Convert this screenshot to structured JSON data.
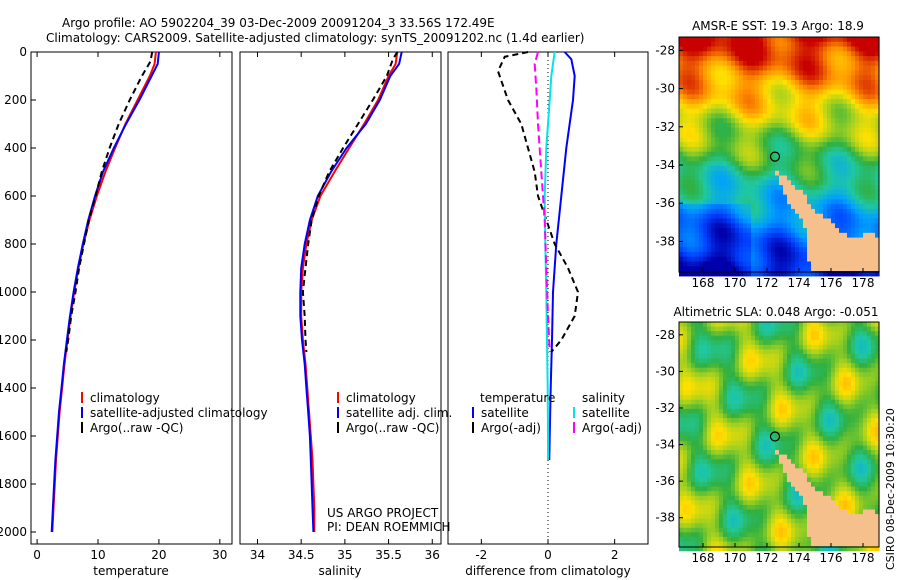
{
  "title": {
    "line1": "Argo profile: AO 5902204_39 03-Dec-2009 20091204_3 33.56S 172.49E",
    "line2": "Climatology: CARS2009. Satellite-adjusted climatology: synTS_20091202.nc (1.4d earlier)"
  },
  "side_label": "CSIRO 08-Dec-2009 10:30:20",
  "project_note": {
    "line1": "US ARGO PROJECT",
    "line2": "PI: DEAN ROEMMICH"
  },
  "colors": {
    "climatology": "#ff0000",
    "satellite": "#0000ff",
    "argo": "#000000",
    "salinity_satellite": "#00e5e5",
    "salinity_argo": "#ff00ff",
    "land": "#f5c08c"
  },
  "chart_data": [
    {
      "id": "temperature",
      "type": "line",
      "xlabel": "temperature",
      "ylabel": "",
      "xlim": [
        -1,
        32
      ],
      "ylim": [
        2050,
        0
      ],
      "xticks": [
        0,
        10,
        20,
        30
      ],
      "yticks": [
        0,
        200,
        400,
        600,
        800,
        1000,
        1200,
        1400,
        1600,
        1800,
        2000
      ],
      "legend": {
        "placement": "lower-right",
        "entries": [
          "climatology",
          "satellite-adjusted climatology",
          "Argo(..raw -QC)"
        ]
      },
      "series": [
        {
          "name": "climatology",
          "color": "#ff0000",
          "dash": "",
          "points": [
            [
              19.5,
              0
            ],
            [
              19.3,
              50
            ],
            [
              18.5,
              100
            ],
            [
              16.5,
              200
            ],
            [
              14.5,
              300
            ],
            [
              12.8,
              400
            ],
            [
              11.2,
              500
            ],
            [
              9.8,
              600
            ],
            [
              8.6,
              700
            ],
            [
              7.6,
              800
            ],
            [
              6.8,
              900
            ],
            [
              6.1,
              1000
            ],
            [
              5.5,
              1100
            ],
            [
              5.0,
              1200
            ],
            [
              4.5,
              1300
            ],
            [
              4.1,
              1400
            ],
            [
              3.7,
              1500
            ],
            [
              3.4,
              1600
            ],
            [
              3.1,
              1700
            ],
            [
              2.9,
              1800
            ],
            [
              2.7,
              1900
            ],
            [
              2.5,
              2000
            ]
          ]
        },
        {
          "name": "satellite-adjusted climatology",
          "color": "#0000ff",
          "dash": "",
          "points": [
            [
              20.0,
              0
            ],
            [
              19.8,
              50
            ],
            [
              18.8,
              100
            ],
            [
              16.8,
              200
            ],
            [
              14.6,
              300
            ],
            [
              12.6,
              400
            ],
            [
              10.8,
              500
            ],
            [
              9.5,
              600
            ],
            [
              8.4,
              700
            ],
            [
              7.5,
              800
            ],
            [
              6.7,
              900
            ],
            [
              6.0,
              1000
            ],
            [
              5.4,
              1100
            ],
            [
              4.9,
              1200
            ],
            [
              4.4,
              1300
            ],
            [
              4.0,
              1400
            ],
            [
              3.6,
              1500
            ],
            [
              3.3,
              1600
            ],
            [
              3.0,
              1700
            ],
            [
              2.8,
              1800
            ],
            [
              2.6,
              1900
            ],
            [
              2.4,
              2000
            ]
          ]
        },
        {
          "name": "Argo(..raw -QC)",
          "color": "#000000",
          "dash": "6,4",
          "points": [
            [
              18.9,
              0
            ],
            [
              18.6,
              40
            ],
            [
              17.2,
              100
            ],
            [
              15.2,
              200
            ],
            [
              13.4,
              300
            ],
            [
              11.9,
              400
            ],
            [
              10.6,
              500
            ],
            [
              9.6,
              600
            ],
            [
              8.5,
              700
            ],
            [
              7.7,
              800
            ],
            [
              6.9,
              900
            ],
            [
              6.3,
              1000
            ],
            [
              5.6,
              1100
            ],
            [
              5.1,
              1200
            ],
            [
              4.8,
              1250
            ]
          ]
        }
      ]
    },
    {
      "id": "salinity",
      "type": "line",
      "xlabel": "salinity",
      "ylabel": "",
      "xlim": [
        33.8,
        36.1
      ],
      "ylim": [
        2050,
        0
      ],
      "xticks": [
        34,
        34.5,
        35,
        35.5,
        36
      ],
      "legend": {
        "placement": "lower-right",
        "entries": [
          "climatology",
          "satellite adj. clim.",
          "Argo(..raw -QC)"
        ]
      },
      "series": [
        {
          "name": "climatology",
          "color": "#ff0000",
          "dash": "",
          "points": [
            [
              35.6,
              0
            ],
            [
              35.58,
              50
            ],
            [
              35.5,
              100
            ],
            [
              35.38,
              200
            ],
            [
              35.22,
              300
            ],
            [
              35.05,
              400
            ],
            [
              34.88,
              500
            ],
            [
              34.72,
              600
            ],
            [
              34.62,
              700
            ],
            [
              34.56,
              800
            ],
            [
              34.52,
              900
            ],
            [
              34.5,
              1000
            ],
            [
              34.5,
              1100
            ],
            [
              34.52,
              1200
            ],
            [
              34.55,
              1300
            ],
            [
              34.57,
              1400
            ],
            [
              34.59,
              1500
            ],
            [
              34.61,
              1600
            ],
            [
              34.63,
              1700
            ],
            [
              34.64,
              1800
            ],
            [
              34.65,
              1900
            ],
            [
              34.65,
              2000
            ]
          ]
        },
        {
          "name": "satellite adj. clim.",
          "color": "#0000ff",
          "dash": "",
          "points": [
            [
              35.65,
              0
            ],
            [
              35.62,
              50
            ],
            [
              35.52,
              100
            ],
            [
              35.4,
              200
            ],
            [
              35.24,
              300
            ],
            [
              35.02,
              400
            ],
            [
              34.84,
              500
            ],
            [
              34.69,
              600
            ],
            [
              34.6,
              700
            ],
            [
              34.54,
              800
            ],
            [
              34.5,
              900
            ],
            [
              34.49,
              1000
            ],
            [
              34.49,
              1100
            ],
            [
              34.51,
              1200
            ],
            [
              34.54,
              1300
            ],
            [
              34.56,
              1400
            ],
            [
              34.58,
              1500
            ],
            [
              34.6,
              1600
            ],
            [
              34.61,
              1700
            ],
            [
              34.62,
              1800
            ],
            [
              34.63,
              1900
            ],
            [
              34.64,
              2000
            ]
          ]
        },
        {
          "name": "Argo(..raw -QC)",
          "color": "#000000",
          "dash": "6,4",
          "points": [
            [
              35.6,
              0
            ],
            [
              35.55,
              30
            ],
            [
              35.48,
              100
            ],
            [
              35.32,
              200
            ],
            [
              35.15,
              300
            ],
            [
              34.98,
              400
            ],
            [
              34.82,
              500
            ],
            [
              34.7,
              600
            ],
            [
              34.62,
              700
            ],
            [
              34.58,
              800
            ],
            [
              34.55,
              900
            ],
            [
              34.52,
              1000
            ],
            [
              34.54,
              1100
            ],
            [
              34.55,
              1200
            ],
            [
              34.56,
              1250
            ]
          ]
        }
      ]
    },
    {
      "id": "difference",
      "type": "line",
      "xlabel": "difference from climatology",
      "ylabel": "",
      "xlim": [
        -3,
        3
      ],
      "ylim": [
        2050,
        0
      ],
      "xticks": [
        -2,
        0,
        2
      ],
      "legend": {
        "placement": "lower-center",
        "entries": [
          "temperature",
          "satellite",
          "Argo(-adj)",
          "salinity",
          "satellite",
          "Argo(-adj)"
        ]
      },
      "series": [
        {
          "name": "temperature satellite",
          "color": "#0000ff",
          "dash": "",
          "points": [
            [
              0.5,
              0
            ],
            [
              0.7,
              30
            ],
            [
              0.8,
              100
            ],
            [
              0.75,
              200
            ],
            [
              0.55,
              400
            ],
            [
              0.4,
              600
            ],
            [
              0.25,
              800
            ],
            [
              0.15,
              1000
            ],
            [
              0.12,
              1200
            ],
            [
              0.08,
              1400
            ],
            [
              0.05,
              1600
            ],
            [
              0.04,
              1700
            ]
          ]
        },
        {
          "name": "temperature Argo(-adj)",
          "color": "#000000",
          "dash": "6,4",
          "points": [
            [
              -0.6,
              0
            ],
            [
              -1.3,
              20
            ],
            [
              -1.5,
              80
            ],
            [
              -1.2,
              200
            ],
            [
              -0.8,
              300
            ],
            [
              -0.6,
              400
            ],
            [
              -0.4,
              500
            ],
            [
              -0.3,
              600
            ],
            [
              0.2,
              800
            ],
            [
              0.6,
              900
            ],
            [
              0.9,
              1000
            ],
            [
              0.8,
              1100
            ],
            [
              0.4,
              1200
            ],
            [
              0.1,
              1250
            ]
          ]
        },
        {
          "name": "salinity satellite",
          "color": "#00e5e5",
          "dash": "",
          "points": [
            [
              0.2,
              0
            ],
            [
              0.1,
              100
            ],
            [
              0.05,
              200
            ],
            [
              -0.05,
              400
            ],
            [
              -0.1,
              600
            ],
            [
              -0.08,
              800
            ],
            [
              -0.05,
              1000
            ],
            [
              -0.03,
              1200
            ],
            [
              -0.01,
              1400
            ],
            [
              0.0,
              1600
            ],
            [
              0.0,
              1700
            ]
          ]
        },
        {
          "name": "salinity Argo(-adj)",
          "color": "#ff00ff",
          "dash": "8,4",
          "points": [
            [
              -0.3,
              0
            ],
            [
              -0.4,
              50
            ],
            [
              -0.35,
              150
            ],
            [
              -0.3,
              300
            ],
            [
              -0.2,
              500
            ],
            [
              -0.1,
              700
            ],
            [
              -0.05,
              900
            ],
            [
              0.0,
              1100
            ],
            [
              0.05,
              1250
            ]
          ]
        }
      ]
    },
    {
      "id": "sst_map",
      "type": "heatmap",
      "title": "AMSR-E SST: 19.3  Argo: 18.9",
      "xticks": [
        168,
        170,
        172,
        174,
        176,
        178
      ],
      "yticks": [
        -28,
        -30,
        -32,
        -34,
        -36,
        -38
      ],
      "xlim": [
        166.5,
        179
      ],
      "ylim": [
        -39.6,
        -27.3
      ],
      "float_position": [
        172.5,
        -33.56
      ]
    },
    {
      "id": "sla_map",
      "type": "heatmap",
      "title": "Altimetric SLA: 0.048  Argo: -0.051",
      "xticks": [
        168,
        170,
        172,
        174,
        176,
        178
      ],
      "yticks": [
        -28,
        -30,
        -32,
        -34,
        -36,
        -38
      ],
      "xlim": [
        166.5,
        179
      ],
      "ylim": [
        -39.6,
        -27.3
      ],
      "float_position": [
        172.5,
        -33.56
      ]
    }
  ]
}
